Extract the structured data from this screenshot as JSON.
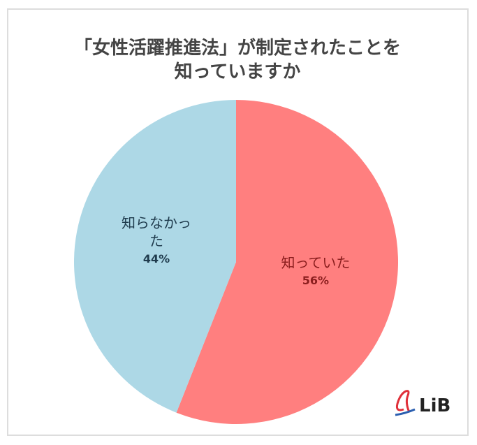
{
  "chart_data": {
    "type": "pie",
    "title": "「女性活躍推進法」が制定されたことを知っていますか",
    "categories": [
      "知っていた",
      "知らなかった"
    ],
    "values": [
      56,
      44
    ],
    "value_labels": [
      "56%",
      "44%"
    ],
    "colors": [
      "#ff7f7f",
      "#add8e6"
    ],
    "label_colors": [
      "#8b1e1e",
      "#1f3b4d"
    ]
  },
  "logo": "LiB"
}
